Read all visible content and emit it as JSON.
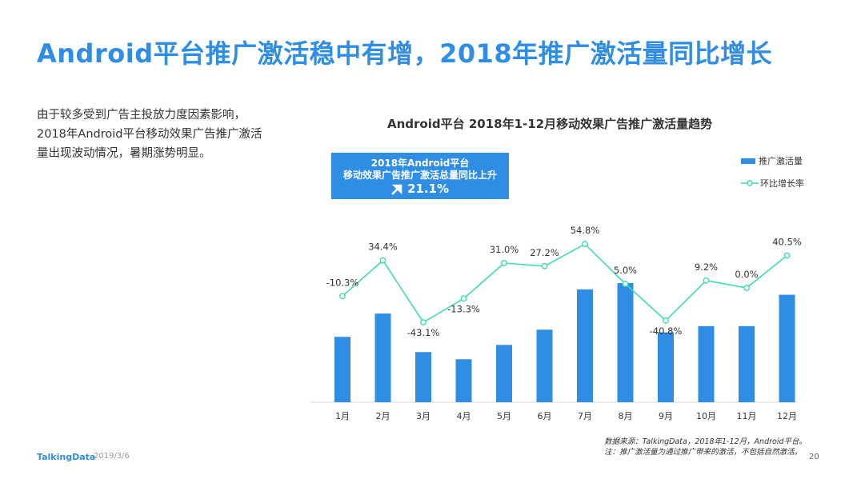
{
  "page": {
    "title": "Android平台推广激活稳中有增，2018年推广激活量同比增长",
    "intro_lines": [
      "由于较多受到广告主投放力度因素影响，",
      "2018年Android平台移动效果广告推广激活",
      "量出现波动情况，暑期涨势明显。"
    ],
    "callout_line1": "2018年Android平台",
    "callout_line2": "移动效果广告推广激活总量同比上升",
    "callout_value": "21.1%",
    "callout_icon": "arrow-up-right-icon",
    "footer_logo": "TalkingData",
    "footer_date": "2019/3/6",
    "source_line1": "数据来源：TalkingData，2018年1-12月，Android平台。",
    "source_line2": "注：推广激活量为通过推广带来的激活，不包括自然激活。",
    "page_number": "20"
  },
  "chart_data": {
    "type": "bar",
    "title": "Android平台   2018年1-12月移动效果广告推广激活量趋势",
    "categories": [
      "1月",
      "2月",
      "3月",
      "4月",
      "5月",
      "6月",
      "7月",
      "8月",
      "9月",
      "10月",
      "11月",
      "12月"
    ],
    "series": [
      {
        "name": "推广激活量",
        "type": "bar",
        "color": "#2f8de4",
        "values": [
          73,
          99,
          56,
          48,
          64,
          81,
          126,
          133,
          78,
          85,
          85,
          120
        ]
      },
      {
        "name": "环比增长率",
        "type": "line",
        "color": "#3ddbb5",
        "values": [
          -10.3,
          34.4,
          -43.1,
          -13.3,
          31.0,
          27.2,
          54.8,
          5.0,
          -40.8,
          9.2,
          0.0,
          40.5
        ],
        "labels": [
          "-10.3%",
          "34.4%",
          "-43.1%",
          "-13.3%",
          "31.0%",
          "27.2%",
          "54.8%",
          "5.0%",
          "-40.8%",
          "9.2%",
          "0.0%",
          "40.5%"
        ]
      }
    ],
    "legend_position": "top-right",
    "grid": false
  }
}
